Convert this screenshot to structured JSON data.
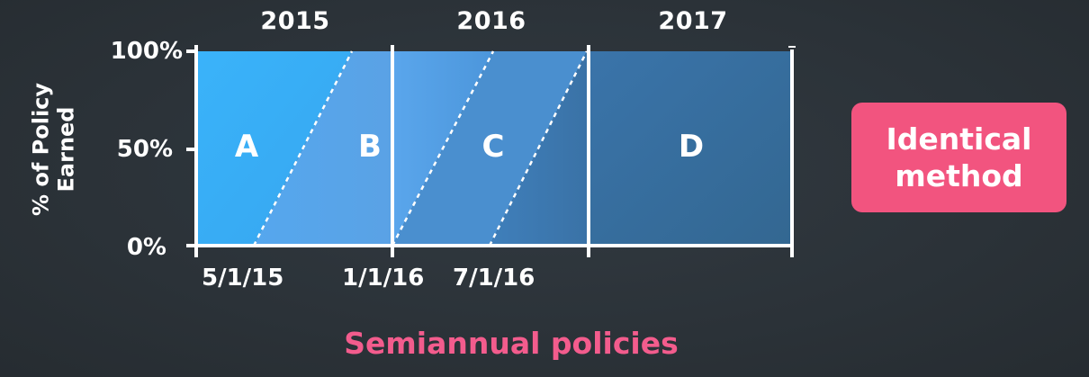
{
  "years": [
    "2015",
    "2016",
    "2017"
  ],
  "y_axis": {
    "title": "% of Policy\nEarned",
    "ticks": [
      "100%",
      "50%",
      "0%"
    ]
  },
  "x_axis": {
    "ticks": [
      "5/1/15",
      "1/1/16",
      "7/1/16"
    ]
  },
  "regions": [
    "A",
    "B",
    "C",
    "D"
  ],
  "chart_title": "Semiannual policies",
  "badge": {
    "text": "Identical\nmethod"
  },
  "colors": {
    "background": "#2b3238",
    "region_a": "#39abf5",
    "region_b": "#57a3e8",
    "region_c": "#4d93d4",
    "region_d": "#366c9a",
    "title": "#f35c8d",
    "badge": "#f2547f"
  }
}
